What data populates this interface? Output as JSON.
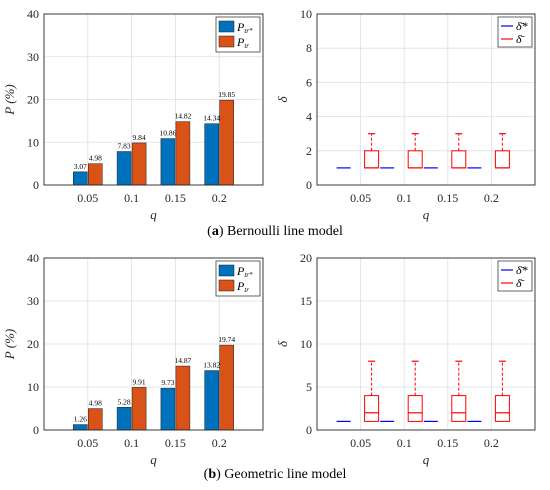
{
  "colors": {
    "blue": "#0072BD",
    "orange": "#D95319",
    "boxblue": "#0000FF",
    "boxred": "#FF0000",
    "axis": "#262626",
    "grid": "#DFDFDF"
  },
  "chart_data": [
    {
      "type": "bar",
      "categories": [
        "0.05",
        "0.1",
        "0.15",
        "0.2"
      ],
      "xlabel": "q",
      "ylabel": "P (%)",
      "ylim": [
        0,
        40
      ],
      "yticks": [
        "0",
        "10",
        "20",
        "30",
        "40"
      ],
      "grid": true,
      "legend_position": "top-right",
      "series": [
        {
          "name": "P_tr*",
          "values": [
            3.07,
            7.83,
            10.86,
            14.34
          ],
          "labels": [
            "3.07",
            "7.83",
            "10.86",
            "14.34"
          ]
        },
        {
          "name": "P_tr",
          "values": [
            4.98,
            9.84,
            14.82,
            19.85
          ],
          "labels": [
            "4.98",
            "9.84",
            "14.82",
            "19.85"
          ]
        }
      ]
    },
    {
      "type": "box",
      "categories": [
        "0.05",
        "0.1",
        "0.15",
        "0.2"
      ],
      "xlabel": "q",
      "ylabel": "δ",
      "ylim": [
        0,
        10
      ],
      "yticks": [
        "0",
        "2",
        "4",
        "6",
        "8",
        "10"
      ],
      "grid": true,
      "legend_position": "top-right",
      "series": [
        {
          "name": "δ̄*",
          "boxes": [
            {
              "min": 1,
              "q1": 1,
              "median": 1,
              "q3": 1,
              "max": 1
            },
            {
              "min": 1,
              "q1": 1,
              "median": 1,
              "q3": 1,
              "max": 1
            },
            {
              "min": 1,
              "q1": 1,
              "median": 1,
              "q3": 1,
              "max": 1
            },
            {
              "min": 1,
              "q1": 1,
              "median": 1,
              "q3": 1,
              "max": 1
            }
          ]
        },
        {
          "name": "δ̄",
          "boxes": [
            {
              "min": 1,
              "q1": 1,
              "median": 1,
              "q3": 2,
              "max": 3
            },
            {
              "min": 1,
              "q1": 1,
              "median": 1,
              "q3": 2,
              "max": 3
            },
            {
              "min": 1,
              "q1": 1,
              "median": 1,
              "q3": 2,
              "max": 3
            },
            {
              "min": 1,
              "q1": 1,
              "median": 1,
              "q3": 2,
              "max": 3
            }
          ]
        }
      ]
    },
    {
      "type": "bar",
      "categories": [
        "0.05",
        "0.1",
        "0.15",
        "0.2"
      ],
      "xlabel": "q",
      "ylabel": "P (%)",
      "ylim": [
        0,
        40
      ],
      "yticks": [
        "0",
        "10",
        "20",
        "30",
        "40"
      ],
      "grid": true,
      "legend_position": "top-right",
      "series": [
        {
          "name": "P_tr*",
          "values": [
            1.26,
            5.28,
            9.73,
            13.82
          ],
          "labels": [
            "1.26",
            "5.28",
            "9.73",
            "13.82"
          ]
        },
        {
          "name": "P_tr",
          "values": [
            4.98,
            9.91,
            14.87,
            19.74
          ],
          "labels": [
            "4.98",
            "9.91",
            "14.87",
            "19.74"
          ]
        }
      ]
    },
    {
      "type": "box",
      "categories": [
        "0.05",
        "0.1",
        "0.15",
        "0.2"
      ],
      "xlabel": "q",
      "ylabel": "δ",
      "ylim": [
        0,
        20
      ],
      "yticks": [
        "0",
        "5",
        "10",
        "15",
        "20"
      ],
      "grid": true,
      "legend_position": "top-right",
      "series": [
        {
          "name": "δ̄*",
          "boxes": [
            {
              "min": 1,
              "q1": 1,
              "median": 1,
              "q3": 1,
              "max": 1
            },
            {
              "min": 1,
              "q1": 1,
              "median": 1,
              "q3": 1,
              "max": 1
            },
            {
              "min": 1,
              "q1": 1,
              "median": 1,
              "q3": 1,
              "max": 1
            },
            {
              "min": 1,
              "q1": 1,
              "median": 1,
              "q3": 1,
              "max": 1
            }
          ]
        },
        {
          "name": "δ̄",
          "boxes": [
            {
              "min": 1,
              "q1": 1,
              "median": 2,
              "q3": 4,
              "max": 8
            },
            {
              "min": 1,
              "q1": 1,
              "median": 2,
              "q3": 4,
              "max": 8
            },
            {
              "min": 1,
              "q1": 1,
              "median": 2,
              "q3": 4,
              "max": 8
            },
            {
              "min": 1,
              "q1": 1,
              "median": 2,
              "q3": 4,
              "max": 8
            }
          ]
        }
      ]
    }
  ],
  "legend": {
    "bar": {
      "main": "P",
      "sub1": "tr*",
      "sub2": "tr"
    },
    "box": {
      "item1": "δ̄*",
      "item2": "δ̄"
    }
  },
  "captions": [
    {
      "letter": "a",
      "text": "Bernoulli line model"
    },
    {
      "letter": "b",
      "text": "Geometric line model"
    }
  ]
}
